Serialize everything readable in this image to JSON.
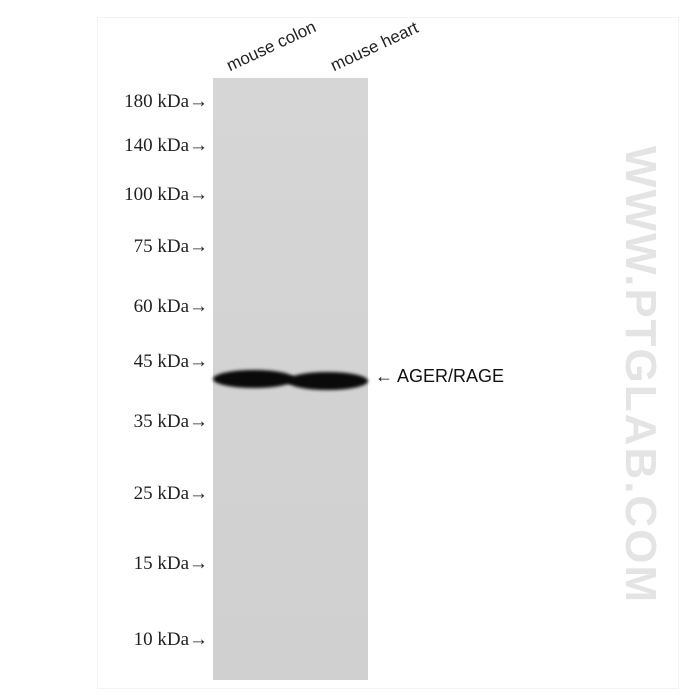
{
  "lanes": [
    "mouse colon",
    "mouse heart"
  ],
  "markers": [
    "180 kDa→",
    "140 kDa→",
    "100 kDa→",
    "75 kDa→",
    "60 kDa→",
    "45 kDa→",
    "35 kDa→",
    "25 kDa→",
    "15 kDa→",
    "10 kDa→"
  ],
  "target_label": "← AGER/RAGE",
  "watermark": "WWW.PTGLAB.COM",
  "colors": {
    "membrane": "#d4d4d4",
    "band": "#0a0a0a"
  }
}
